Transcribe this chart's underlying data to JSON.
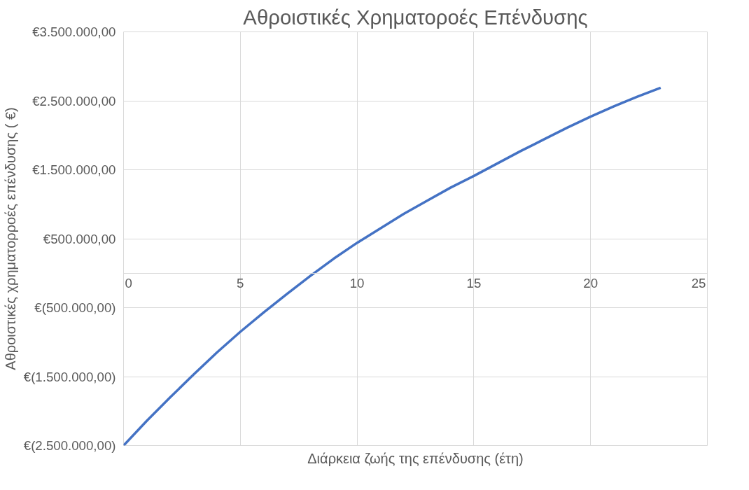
{
  "chart_data": {
    "type": "line",
    "title": "Αθροιστικές Χρηματοροές Επένδυσης",
    "xlabel": "Διάρκεια ζωής της επένδυσης (έτη)",
    "ylabel": "Αθροιστικές χρηματορροές επένδυσης ( €)",
    "x": [
      0,
      1,
      2,
      3,
      4,
      5,
      6,
      7,
      8,
      9,
      10,
      11,
      12,
      13,
      14,
      15,
      16,
      17,
      18,
      19,
      20,
      21,
      22,
      23
    ],
    "series": [
      {
        "color": "#4472c4",
        "values": [
          -2500000,
          -2140000,
          -1800000,
          -1470000,
          -1150000,
          -850000,
          -570000,
          -300000,
          -40000,
          210000,
          440000,
          650000,
          860000,
          1050000,
          1240000,
          1410000,
          1590000,
          1770000,
          1940000,
          2110000,
          2270000,
          2420000,
          2560000,
          2690000
        ]
      }
    ],
    "xlim": [
      0,
      25
    ],
    "xticks": [
      0,
      5,
      10,
      15,
      20,
      25
    ],
    "ylim": [
      -2500000,
      3500000
    ],
    "yticks": [
      {
        "value": -2500000,
        "label": "€(2.500.000,00)"
      },
      {
        "value": -1500000,
        "label": "€(1.500.000,00)"
      },
      {
        "value": -500000,
        "label": "€(500.000,00)"
      },
      {
        "value": 500000,
        "label": "€500.000,00"
      },
      {
        "value": 1500000,
        "label": "€1.500.000,00"
      },
      {
        "value": 2500000,
        "label": "€2.500.000,00"
      },
      {
        "value": 3500000,
        "label": "€3.500.000,00"
      }
    ],
    "grid": true,
    "marker": "none",
    "line_style": "solid"
  }
}
